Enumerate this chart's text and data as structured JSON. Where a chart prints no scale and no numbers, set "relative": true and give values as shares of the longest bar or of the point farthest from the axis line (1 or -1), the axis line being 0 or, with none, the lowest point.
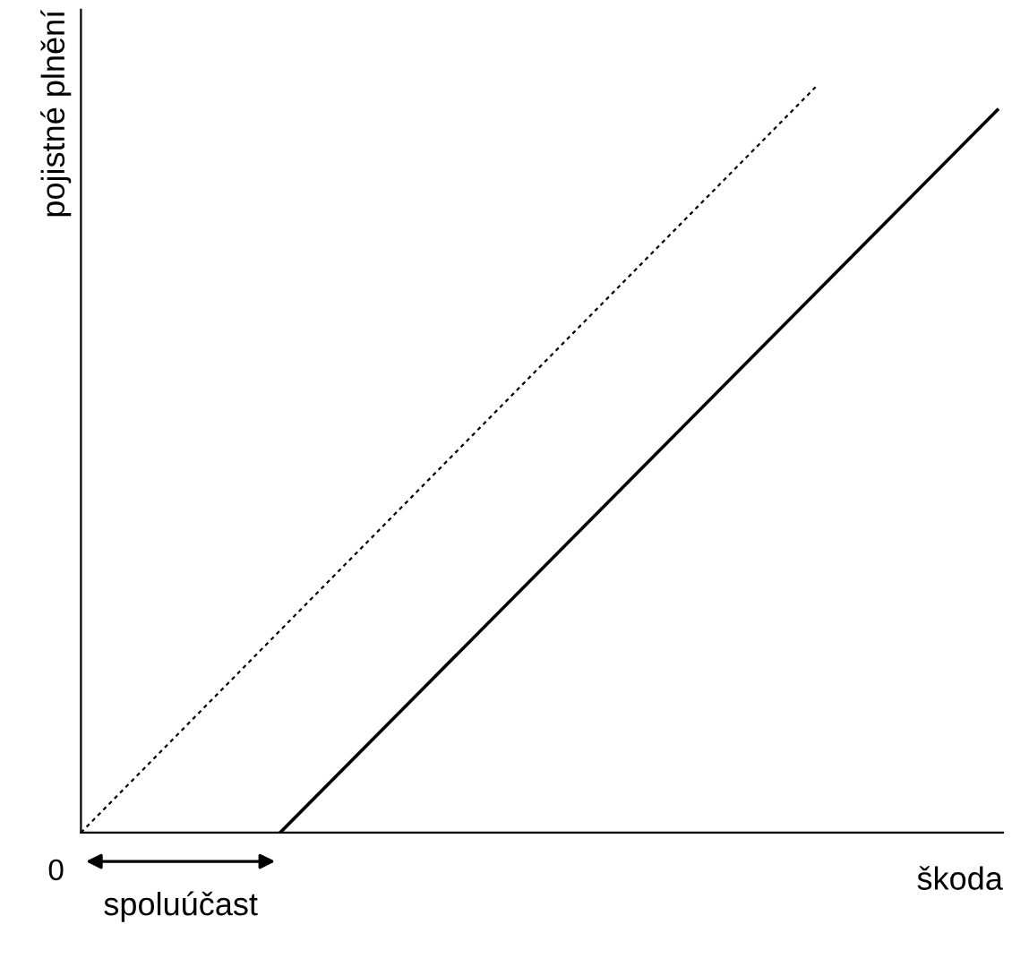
{
  "chart_data": {
    "type": "line",
    "relative": true,
    "xlabel": "škoda",
    "ylabel": "pojistné plnění",
    "categories": [
      null,
      null,
      null,
      null,
      null,
      null,
      null,
      null,
      null,
      null,
      null,
      null,
      null,
      null,
      null,
      null,
      null,
      null,
      null,
      null,
      null,
      null,
      null,
      null,
      null,
      null,
      null,
      null,
      null,
      null,
      null,
      null,
      null,
      null,
      null,
      null,
      null,
      null,
      null,
      null,
      null,
      null,
      null,
      null,
      null,
      null,
      null
    ],
    "annotations": [
      "0",
      "spoluúčast"
    ],
    "series": [
      {
        "color": "#000000",
        "line_style": "dotted",
        "values": [
          0,
          null,
          null,
          null,
          null,
          null,
          null,
          null,
          null,
          null,
          null,
          null,
          null,
          null,
          null,
          null,
          null,
          null,
          null,
          null,
          null,
          null,
          null,
          null,
          null,
          null,
          null,
          null,
          null,
          null,
          null,
          null,
          null,
          null,
          null,
          null,
          null,
          1,
          null,
          null,
          null,
          null,
          null,
          null,
          null,
          null,
          null
        ]
      },
      {
        "color": "#000000",
        "line_style": "solid",
        "values": [
          null,
          null,
          null,
          null,
          null,
          null,
          null,
          null,
          null,
          null,
          0,
          null,
          null,
          null,
          null,
          null,
          null,
          null,
          null,
          null,
          null,
          null,
          null,
          null,
          null,
          null,
          null,
          null,
          null,
          null,
          null,
          null,
          null,
          null,
          null,
          null,
          null,
          null,
          null,
          null,
          null,
          null,
          null,
          null,
          null,
          null,
          0.966
        ]
      }
    ]
  }
}
